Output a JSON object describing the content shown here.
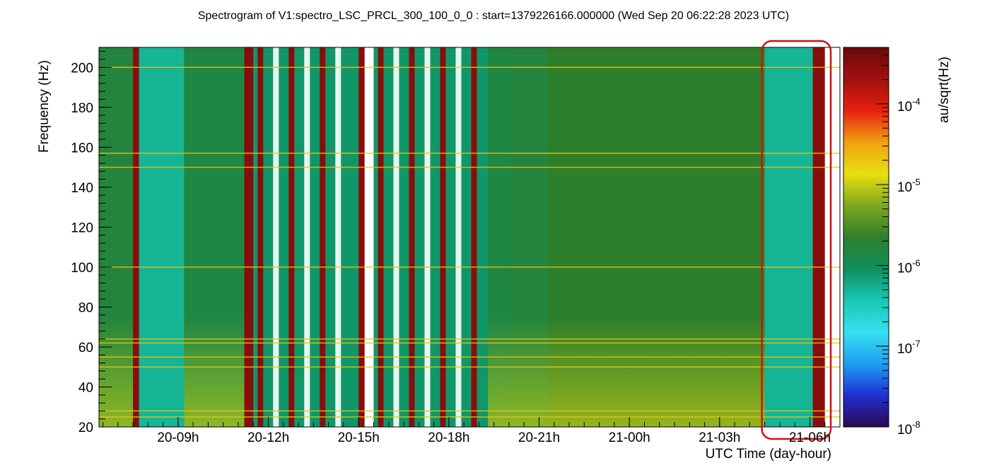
{
  "chart_data": {
    "type": "heatmap",
    "title": "Spectrogram of V1:spectro_LSC_PRCL_300_100_0_0 : start=1379226166.000000 (Wed Sep 20 06:22:28 2023 UTC)",
    "xlabel": "UTC Time (day-hour)",
    "ylabel": "Frequency (Hz)",
    "zlabel": "au/sqrt(Hz)",
    "x_ticks": [
      "20-09h",
      "20-12h",
      "20-15h",
      "20-18h",
      "20-21h",
      "21-00h",
      "21-03h",
      "21-06h"
    ],
    "x_tick_hours": [
      9,
      12,
      15,
      18,
      21,
      24,
      27,
      30
    ],
    "xlim_hours": [
      6.37,
      31.0
    ],
    "y_ticks": [
      20,
      40,
      60,
      80,
      100,
      120,
      140,
      160,
      180,
      200
    ],
    "ylim": [
      20,
      210
    ],
    "z_scale": "log",
    "zlim": [
      1e-08,
      0.0005
    ],
    "z_ticks": [
      {
        "base": "10",
        "exp": "-8",
        "value": 1e-08
      },
      {
        "base": "10",
        "exp": "-7",
        "value": 1e-07
      },
      {
        "base": "10",
        "exp": "-6",
        "value": 1e-06
      },
      {
        "base": "10",
        "exp": "-5",
        "value": 1e-05
      },
      {
        "base": "10",
        "exp": "-4",
        "value": 0.0001
      }
    ],
    "colormap_stops": [
      "#2a0a52",
      "#1f2fd2",
      "#1e9ff2",
      "#36e0f0",
      "#18c8b4",
      "#0f8f5c",
      "#2f7f2a",
      "#7fa620",
      "#e8e010",
      "#f0a010",
      "#e82010",
      "#a01010",
      "#6a0a08"
    ],
    "time_segments": [
      {
        "start_h": 6.37,
        "end_h": 7.5,
        "state": "locked",
        "level": 1.6e-06
      },
      {
        "start_h": 7.5,
        "end_h": 7.7,
        "state": "saturated",
        "level": 0.0003
      },
      {
        "start_h": 7.7,
        "end_h": 9.2,
        "state": "quiet",
        "level": 5e-07
      },
      {
        "start_h": 9.2,
        "end_h": 11.2,
        "state": "locked",
        "level": 1.4e-06
      },
      {
        "start_h": 11.2,
        "end_h": 11.5,
        "state": "saturated",
        "level": 0.0003
      },
      {
        "start_h": 11.5,
        "end_h": 15.0,
        "state": "mixed",
        "level": 8e-07
      },
      {
        "start_h": 15.0,
        "end_h": 15.2,
        "state": "saturated",
        "level": 0.0003
      },
      {
        "start_h": 15.2,
        "end_h": 15.5,
        "state": "gap",
        "level": null
      },
      {
        "start_h": 15.5,
        "end_h": 19.3,
        "state": "mixed",
        "level": 8e-07
      },
      {
        "start_h": 19.3,
        "end_h": 20.0,
        "state": "locked",
        "level": 1.4e-06
      },
      {
        "start_h": 20.0,
        "end_h": 21.3,
        "state": "locked",
        "level": 1.6e-06
      },
      {
        "start_h": 21.3,
        "end_h": 28.5,
        "state": "locked",
        "level": 2.2e-06
      },
      {
        "start_h": 28.5,
        "end_h": 30.1,
        "state": "quiet",
        "level": 5e-07
      },
      {
        "start_h": 30.1,
        "end_h": 30.5,
        "state": "saturated",
        "level": 0.0003
      },
      {
        "start_h": 30.5,
        "end_h": 31.0,
        "state": "gap",
        "level": null
      }
    ],
    "spectral_lines_hz": [
      25,
      28,
      50,
      55,
      62,
      64,
      100,
      150,
      157,
      200
    ],
    "highlight": {
      "label": "",
      "start_h": 28.5,
      "end_h": 30.6,
      "color": "#d01010"
    }
  }
}
